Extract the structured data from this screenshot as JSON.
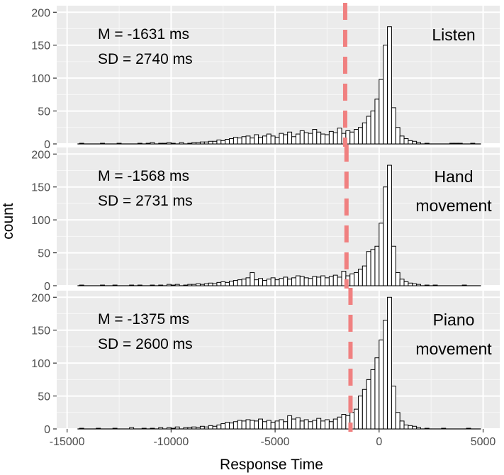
{
  "chart_data": {
    "type": "histogram",
    "layout": "three vertically stacked facet panels sharing the x axis",
    "xlabel": "Response Time",
    "ylabel": "count",
    "xlim": [
      -15500,
      5800
    ],
    "ylim": [
      0,
      210
    ],
    "x_ticks": [
      -15000,
      -10000,
      -5000,
      0,
      5000
    ],
    "x_tick_labels": [
      "-15000",
      "-10000",
      "-5000",
      "0",
      "5000"
    ],
    "y_ticks": [
      0,
      50,
      100,
      150,
      200
    ],
    "y_tick_labels": [
      "0",
      "50",
      "100",
      "150",
      "200"
    ],
    "bin_width": 200,
    "grid": true,
    "panel_background": "#ebebeb",
    "bar_fill": "#ffffff",
    "bar_outline": "#000000",
    "mean_line_color": "#f08080",
    "mean_line_style": "dashed",
    "panels": [
      {
        "label_lines": [
          "Listen"
        ],
        "stat_lines": [
          "M = -1631 ms",
          "SD = 2740 ms"
        ],
        "mean": -1631,
        "bins": [
          [
            -14300,
            1
          ],
          [
            -13300,
            1
          ],
          [
            -12500,
            1
          ],
          [
            -11500,
            1
          ],
          [
            -11100,
            1
          ],
          [
            -10900,
            2
          ],
          [
            -10500,
            1
          ],
          [
            -10300,
            1
          ],
          [
            -10100,
            2
          ],
          [
            -9900,
            1
          ],
          [
            -9500,
            2
          ],
          [
            -9100,
            1
          ],
          [
            -8900,
            2
          ],
          [
            -8700,
            2
          ],
          [
            -8500,
            3
          ],
          [
            -8300,
            3
          ],
          [
            -8100,
            4
          ],
          [
            -7900,
            4
          ],
          [
            -7700,
            6
          ],
          [
            -7500,
            5
          ],
          [
            -7300,
            7
          ],
          [
            -7100,
            8
          ],
          [
            -6900,
            10
          ],
          [
            -6700,
            9
          ],
          [
            -6500,
            11
          ],
          [
            -6300,
            12
          ],
          [
            -6100,
            9
          ],
          [
            -5900,
            14
          ],
          [
            -5700,
            10
          ],
          [
            -5500,
            12
          ],
          [
            -5300,
            15
          ],
          [
            -5100,
            12
          ],
          [
            -4900,
            10
          ],
          [
            -4700,
            16
          ],
          [
            -4500,
            14
          ],
          [
            -4300,
            18
          ],
          [
            -4100,
            11
          ],
          [
            -3900,
            15
          ],
          [
            -3700,
            20
          ],
          [
            -3500,
            17
          ],
          [
            -3300,
            16
          ],
          [
            -3100,
            22
          ],
          [
            -2900,
            18
          ],
          [
            -2700,
            15
          ],
          [
            -2500,
            14
          ],
          [
            -2300,
            19
          ],
          [
            -2100,
            17
          ],
          [
            -1900,
            24
          ],
          [
            -1700,
            16
          ],
          [
            -1500,
            20
          ],
          [
            -1300,
            18
          ],
          [
            -1100,
            22
          ],
          [
            -900,
            25
          ],
          [
            -700,
            32
          ],
          [
            -500,
            42
          ],
          [
            -300,
            50
          ],
          [
            -100,
            68
          ],
          [
            100,
            98
          ],
          [
            300,
            150
          ],
          [
            500,
            178
          ],
          [
            700,
            55
          ],
          [
            900,
            25
          ],
          [
            1100,
            12
          ],
          [
            1300,
            8
          ],
          [
            1500,
            5
          ],
          [
            1700,
            4
          ],
          [
            1900,
            2
          ],
          [
            2300,
            1
          ],
          [
            3500,
            1
          ],
          [
            3700,
            1
          ],
          [
            3900,
            1
          ],
          [
            4500,
            1
          ]
        ]
      },
      {
        "label_lines": [
          "Hand",
          "movement"
        ],
        "stat_lines": [
          "M = -1568 ms",
          "SD = 2731 ms"
        ],
        "mean": -1568,
        "bins": [
          [
            -14300,
            1
          ],
          [
            -13300,
            1
          ],
          [
            -12700,
            1
          ],
          [
            -11900,
            1
          ],
          [
            -11500,
            1
          ],
          [
            -10900,
            1
          ],
          [
            -10500,
            1
          ],
          [
            -10100,
            2
          ],
          [
            -9900,
            1
          ],
          [
            -9700,
            2
          ],
          [
            -9300,
            1
          ],
          [
            -9100,
            2
          ],
          [
            -8900,
            2
          ],
          [
            -8700,
            3
          ],
          [
            -8500,
            2
          ],
          [
            -8300,
            3
          ],
          [
            -8100,
            4
          ],
          [
            -7900,
            3
          ],
          [
            -7700,
            5
          ],
          [
            -7500,
            6
          ],
          [
            -7300,
            5
          ],
          [
            -7100,
            7
          ],
          [
            -6900,
            8
          ],
          [
            -6700,
            9
          ],
          [
            -6500,
            10
          ],
          [
            -6300,
            12
          ],
          [
            -6100,
            20
          ],
          [
            -5900,
            9
          ],
          [
            -5700,
            11
          ],
          [
            -5500,
            8
          ],
          [
            -5300,
            10
          ],
          [
            -5100,
            12
          ],
          [
            -4900,
            9
          ],
          [
            -4700,
            11
          ],
          [
            -4500,
            13
          ],
          [
            -4300,
            10
          ],
          [
            -4100,
            12
          ],
          [
            -3900,
            15
          ],
          [
            -3700,
            14
          ],
          [
            -3500,
            12
          ],
          [
            -3300,
            11
          ],
          [
            -3100,
            14
          ],
          [
            -2900,
            13
          ],
          [
            -2700,
            15
          ],
          [
            -2500,
            12
          ],
          [
            -2300,
            14
          ],
          [
            -2100,
            16
          ],
          [
            -1900,
            13
          ],
          [
            -1700,
            22
          ],
          [
            -1500,
            15
          ],
          [
            -1300,
            18
          ],
          [
            -1100,
            20
          ],
          [
            -900,
            25
          ],
          [
            -700,
            30
          ],
          [
            -500,
            52
          ],
          [
            -300,
            55
          ],
          [
            -100,
            60
          ],
          [
            100,
            95
          ],
          [
            300,
            150
          ],
          [
            500,
            183
          ],
          [
            700,
            60
          ],
          [
            900,
            20
          ],
          [
            1100,
            10
          ],
          [
            1300,
            6
          ],
          [
            1500,
            4
          ],
          [
            1700,
            3
          ],
          [
            1900,
            2
          ],
          [
            2300,
            1
          ],
          [
            2700,
            1
          ],
          [
            4100,
            1
          ]
        ]
      },
      {
        "label_lines": [
          "Piano",
          "movement"
        ],
        "stat_lines": [
          "M = -1375 ms",
          "SD = 2600 ms"
        ],
        "mean": -1375,
        "bins": [
          [
            -14300,
            1
          ],
          [
            -13500,
            1
          ],
          [
            -12700,
            1
          ],
          [
            -11900,
            2
          ],
          [
            -11300,
            1
          ],
          [
            -10900,
            1
          ],
          [
            -10500,
            2
          ],
          [
            -10100,
            2
          ],
          [
            -9900,
            1
          ],
          [
            -9700,
            3
          ],
          [
            -9300,
            2
          ],
          [
            -9100,
            2
          ],
          [
            -8900,
            3
          ],
          [
            -8700,
            2
          ],
          [
            -8500,
            4
          ],
          [
            -8300,
            3
          ],
          [
            -8100,
            5
          ],
          [
            -7900,
            4
          ],
          [
            -7700,
            6
          ],
          [
            -7500,
            8
          ],
          [
            -7300,
            10
          ],
          [
            -7100,
            9
          ],
          [
            -6900,
            11
          ],
          [
            -6700,
            13
          ],
          [
            -6500,
            12
          ],
          [
            -6300,
            14
          ],
          [
            -6100,
            13
          ],
          [
            -5900,
            12
          ],
          [
            -5700,
            15
          ],
          [
            -5500,
            11
          ],
          [
            -5300,
            13
          ],
          [
            -5100,
            10
          ],
          [
            -4900,
            12
          ],
          [
            -4700,
            14
          ],
          [
            -4500,
            11
          ],
          [
            -4300,
            20
          ],
          [
            -4100,
            15
          ],
          [
            -3900,
            17
          ],
          [
            -3700,
            12
          ],
          [
            -3500,
            14
          ],
          [
            -3300,
            11
          ],
          [
            -3100,
            13
          ],
          [
            -2900,
            16
          ],
          [
            -2700,
            12
          ],
          [
            -2500,
            14
          ],
          [
            -2300,
            11
          ],
          [
            -2100,
            15
          ],
          [
            -1900,
            18
          ],
          [
            -1700,
            22
          ],
          [
            -1500,
            20
          ],
          [
            -1300,
            25
          ],
          [
            -1100,
            30
          ],
          [
            -900,
            50
          ],
          [
            -700,
            60
          ],
          [
            -500,
            75
          ],
          [
            -300,
            90
          ],
          [
            -100,
            108
          ],
          [
            100,
            135
          ],
          [
            300,
            165
          ],
          [
            500,
            200
          ],
          [
            700,
            65
          ],
          [
            900,
            25
          ],
          [
            1100,
            12
          ],
          [
            1300,
            6
          ],
          [
            1500,
            5
          ],
          [
            1700,
            4
          ],
          [
            1900,
            2
          ],
          [
            2300,
            1
          ],
          [
            3100,
            1
          ],
          [
            4300,
            1
          ]
        ]
      }
    ]
  }
}
